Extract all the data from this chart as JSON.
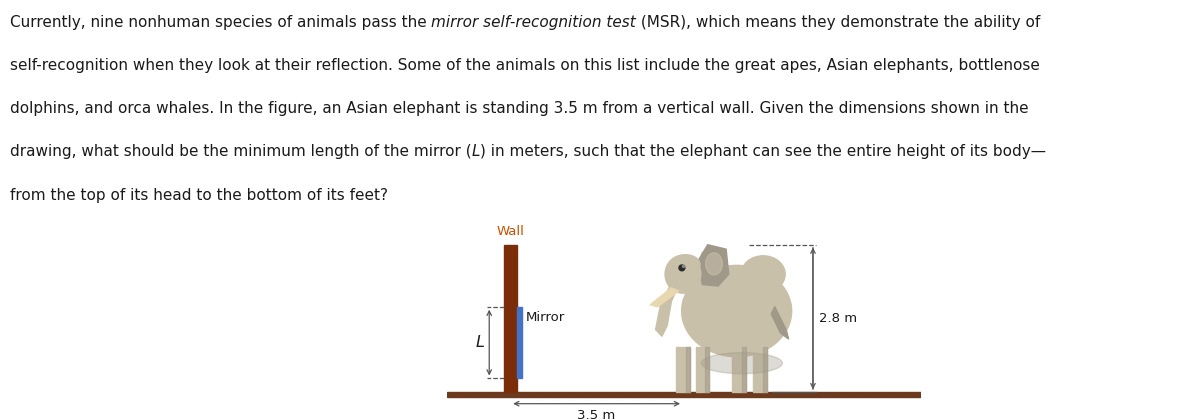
{
  "lines": [
    [
      [
        "Currently, nine nonhuman species of animals pass the ",
        false
      ],
      [
        "mirror self-recognition test",
        true
      ],
      [
        " (MSR), which means they demonstrate the ability of",
        false
      ]
    ],
    [
      [
        "self-recognition when they look at their reflection. Some of the animals on this list include the great apes, Asian elephants, bottlenose",
        false
      ]
    ],
    [
      [
        "dolphins, and orca whales. In the figure, an Asian elephant is standing 3.5 m from a vertical wall. Given the dimensions shown in the",
        false
      ]
    ],
    [
      [
        "drawing, what should be the minimum length of the mirror (",
        false
      ],
      [
        "L",
        true
      ],
      [
        ") in meters, such that the elephant can see the entire height of its body—",
        false
      ]
    ],
    [
      [
        "from the top of its head to the bottom of its feet?",
        false
      ]
    ]
  ],
  "wall_color": "#7B2D0A",
  "mirror_color": "#4472C4",
  "ground_color": "#6B3A1F",
  "wall_label": "Wall",
  "wall_label_color": "#C45000",
  "mirror_text": "Mirror",
  "mirror_label": "L",
  "distance_label": "3.5 m",
  "height_label": "2.8 m",
  "bg_color": "#ffffff",
  "text_color": "#1a1a1a",
  "dim_color": "#555555",
  "text_fontsize": 11.0,
  "diagram_fontsize": 9.5,
  "elephant_body_color": "#C8C0A8",
  "elephant_shade_color": "#A09888",
  "elephant_dark_color": "#888070"
}
